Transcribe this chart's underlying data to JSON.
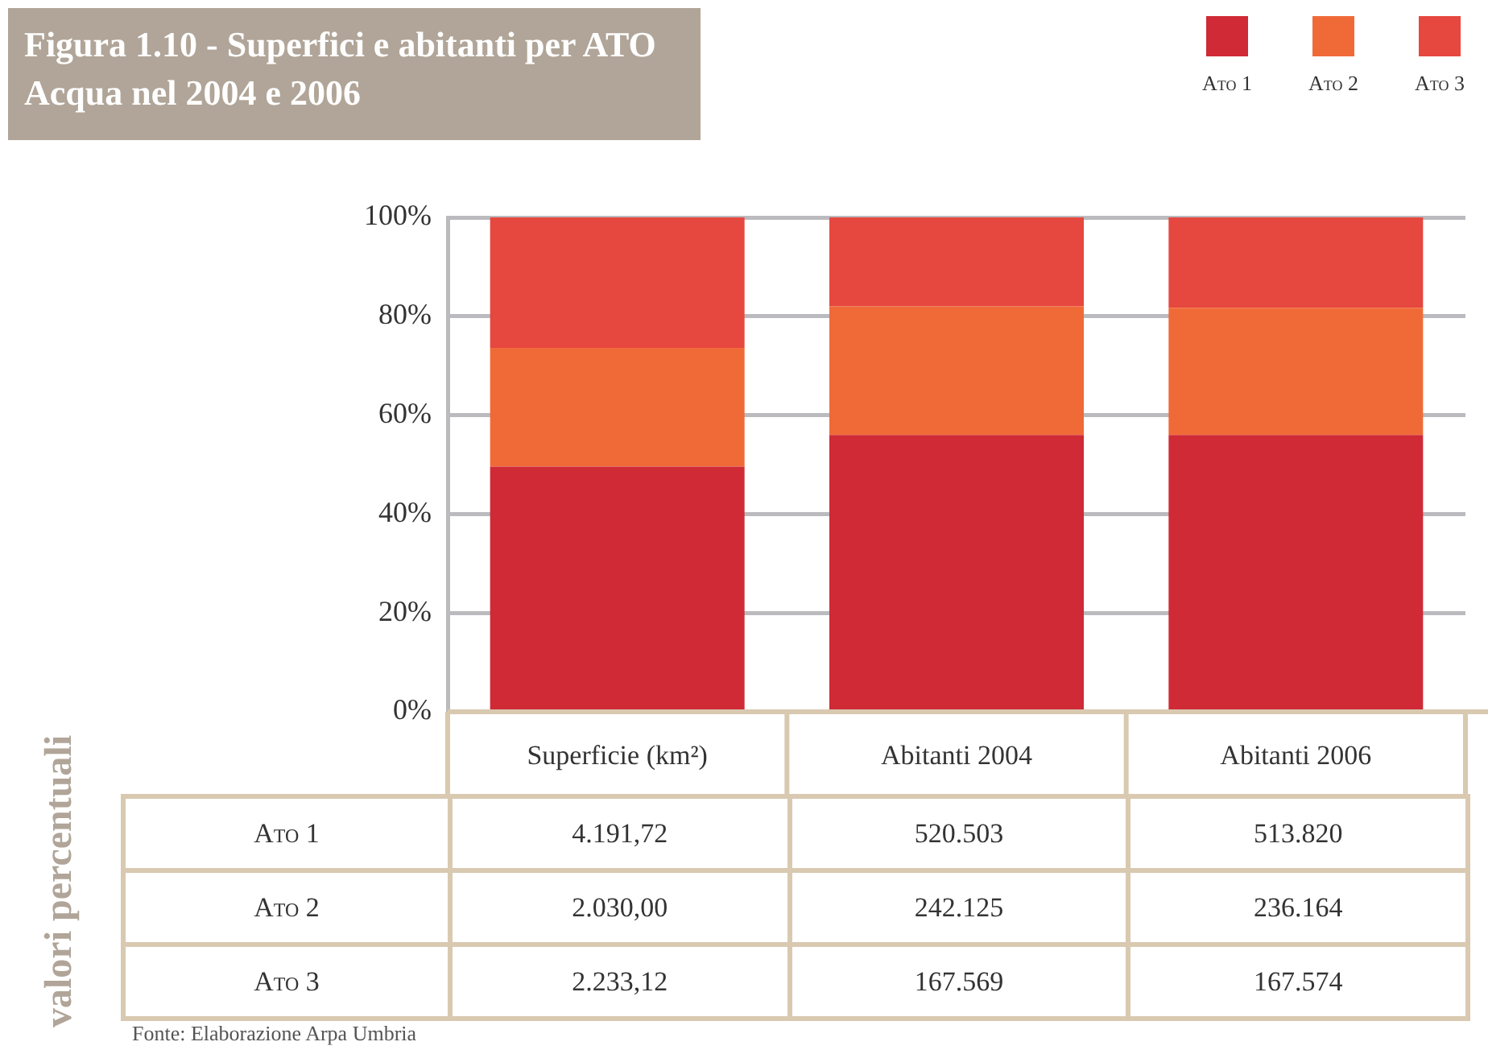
{
  "chart_data": {
    "type": "bar",
    "stacked": true,
    "title": "Figura 1.10 - Superfici e abitanti per ATO Acqua nel 2004 e 2006",
    "categories": [
      "Superficie (km²)",
      "Abitanti 2004",
      "Abitanti 2006"
    ],
    "series": [
      {
        "name": "Ato 1",
        "color": "#cf2a36",
        "values": [
          49.6,
          56.0,
          56.0
        ]
      },
      {
        "name": "Ato 2",
        "color": "#f06a38",
        "values": [
          24.0,
          26.0,
          25.7
        ]
      },
      {
        "name": "Ato 3",
        "color": "#e6473f",
        "values": [
          26.4,
          18.0,
          18.3
        ]
      }
    ],
    "ylim": [
      0,
      100
    ],
    "yticks": [
      {
        "value": 0,
        "label": "0%"
      },
      {
        "value": 20,
        "label": "20%"
      },
      {
        "value": 40,
        "label": "40%"
      },
      {
        "value": 60,
        "label": "60%"
      },
      {
        "value": 80,
        "label": "80%"
      },
      {
        "value": 100,
        "label": "100%"
      }
    ],
    "grid": "y",
    "legend": "top right",
    "annotations": [
      "valori percentuali",
      "Fonte: Elaborazione Arpa Umbria",
      "4.191,72",
      "520.503",
      "513.820",
      "2.030,00",
      "242.125",
      "236.164",
      "2.233,12",
      "167.569",
      "167.574"
    ]
  }
}
